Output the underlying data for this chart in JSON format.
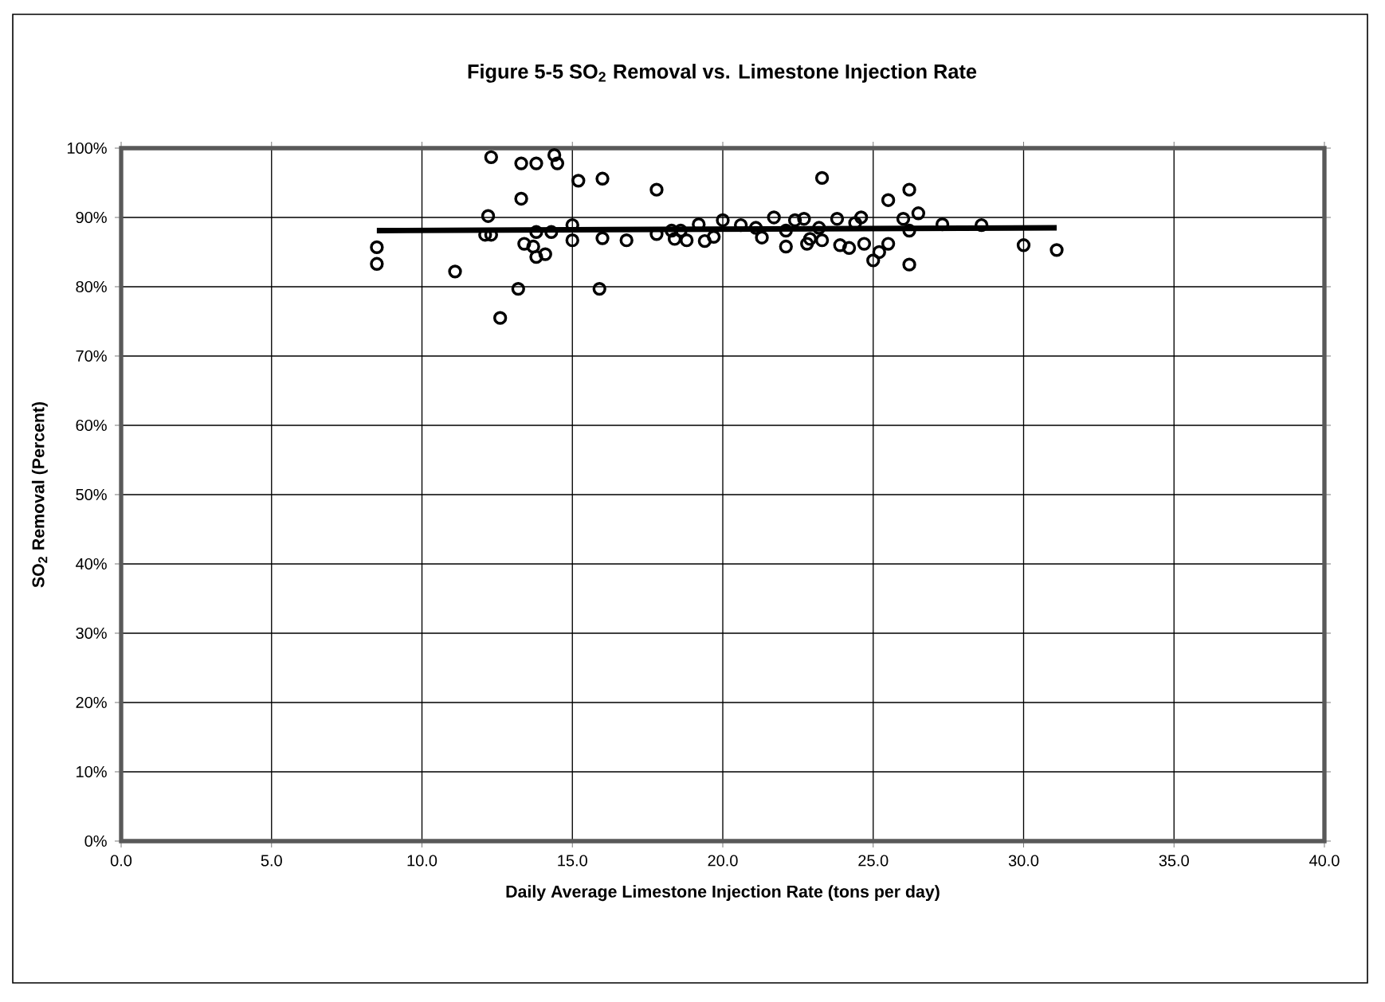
{
  "chart_data": {
    "type": "scatter",
    "title": "Figure 5-5  SO$_{2}$ Removal vs. Limestone Injection Rate",
    "xlabel": "Daily Average Limestone Injection Rate (tons per day)",
    "ylabel": "SO$_{2}$ Removal (Percent)",
    "xlim": [
      0,
      40
    ],
    "ylim": [
      0,
      100
    ],
    "xticks": [
      {
        "value": 0,
        "label": "0.0"
      },
      {
        "value": 5,
        "label": "5.0"
      },
      {
        "value": 10,
        "label": "10.0"
      },
      {
        "value": 15,
        "label": "15.0"
      },
      {
        "value": 20,
        "label": "20.0"
      },
      {
        "value": 25,
        "label": "25.0"
      },
      {
        "value": 30,
        "label": "30.0"
      },
      {
        "value": 35,
        "label": "35.0"
      },
      {
        "value": 40,
        "label": "40.0"
      }
    ],
    "yticks": [
      {
        "value": 0,
        "label": "0%"
      },
      {
        "value": 10,
        "label": "10%"
      },
      {
        "value": 20,
        "label": "20%"
      },
      {
        "value": 30,
        "label": "30%"
      },
      {
        "value": 40,
        "label": "40%"
      },
      {
        "value": 50,
        "label": "50%"
      },
      {
        "value": 60,
        "label": "60%"
      },
      {
        "value": 70,
        "label": "70%"
      },
      {
        "value": 80,
        "label": "80%"
      },
      {
        "value": 90,
        "label": "90%"
      },
      {
        "value": 100,
        "label": "100%"
      }
    ],
    "grid": true,
    "marker": "circle",
    "series": [
      {
        "color": "#000000",
        "x": [
          8.5,
          8.5,
          11.1,
          12.3,
          12.2,
          12.1,
          12.3,
          12.6,
          13.2,
          13.3,
          13.3,
          13.8,
          13.4,
          13.7,
          13.8,
          14.1,
          13.8,
          14.3,
          14.4,
          14.5,
          15.2,
          15.0,
          15.0,
          16.0,
          16.0,
          15.9,
          16.8,
          17.8,
          17.8,
          18.3,
          18.4,
          18.6,
          18.8,
          19.2,
          19.4,
          19.7,
          20.0,
          20.6,
          21.1,
          21.3,
          21.7,
          22.1,
          22.1,
          22.4,
          22.7,
          22.8,
          22.9,
          23.2,
          23.3,
          23.3,
          23.8,
          23.9,
          24.2,
          24.6,
          24.7,
          24.4,
          25.0,
          25.2,
          25.5,
          25.5,
          26.0,
          26.2,
          26.2,
          26.2,
          26.5,
          27.3,
          28.6,
          30.0,
          31.1
        ],
        "values": [
          85.7,
          83.3,
          82.2,
          98.7,
          90.2,
          87.5,
          87.5,
          75.5,
          79.7,
          92.7,
          97.8,
          97.8,
          86.2,
          85.8,
          84.3,
          84.7,
          87.9,
          87.9,
          99.0,
          97.8,
          95.3,
          88.9,
          86.7,
          95.6,
          87.0,
          79.7,
          86.7,
          94.0,
          87.6,
          88.1,
          86.9,
          88.1,
          86.7,
          89.0,
          86.6,
          87.2,
          89.6,
          88.9,
          88.5,
          87.1,
          90.0,
          85.8,
          88.1,
          89.6,
          89.8,
          86.2,
          86.9,
          88.5,
          86.7,
          95.7,
          89.8,
          86.0,
          85.6,
          90.0,
          86.2,
          89.2,
          83.8,
          85.0,
          86.2,
          92.5,
          89.8,
          94.0,
          83.2,
          88.1,
          90.6,
          89.0,
          88.9,
          86.0,
          85.3
        ]
      },
      {
        "type": "line",
        "marker": "none",
        "color": "#000000",
        "x": [
          8.5,
          31.1
        ],
        "values": [
          88.1,
          88.5
        ]
      }
    ]
  }
}
